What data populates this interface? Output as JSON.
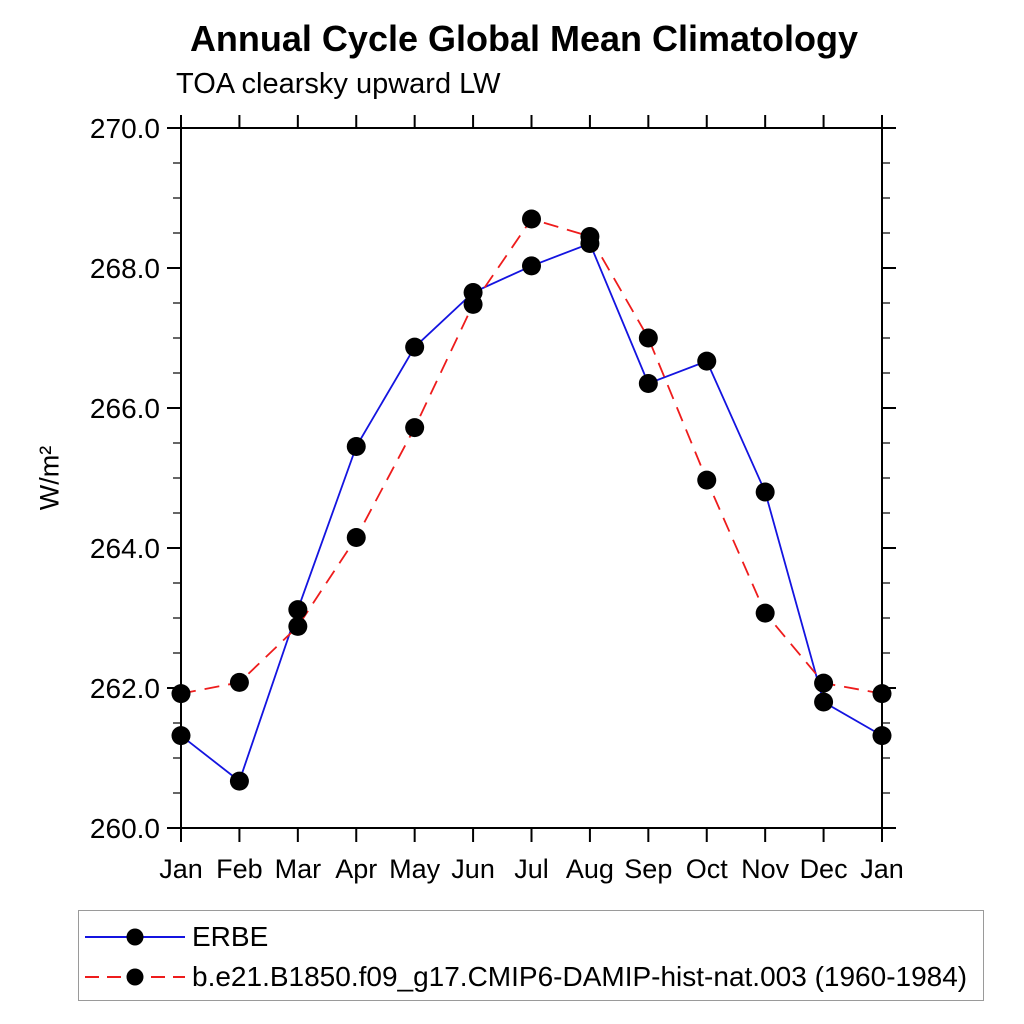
{
  "title": "Annual Cycle Global Mean Climatology",
  "subtitle": "TOA clearsky upward LW",
  "chart_data": {
    "type": "line",
    "categories": [
      "Jan",
      "Feb",
      "Mar",
      "Apr",
      "May",
      "Jun",
      "Jul",
      "Aug",
      "Sep",
      "Oct",
      "Nov",
      "Dec",
      "Jan"
    ],
    "series": [
      {
        "name": "ERBE",
        "color": "#1414e0",
        "line_style": "solid",
        "marker": "black-dot",
        "values": [
          261.32,
          260.67,
          263.12,
          265.45,
          266.87,
          267.65,
          268.03,
          268.35,
          266.35,
          266.67,
          264.8,
          261.8,
          261.32
        ]
      },
      {
        "name": "b.e21.B1850.f09_g17.CMIP6-DAMIP-hist-nat.003 (1960-1984)",
        "color": "#ee1c1c",
        "line_style": "dashed",
        "marker": "black-dot",
        "values": [
          261.92,
          262.08,
          262.88,
          264.15,
          265.72,
          267.48,
          268.7,
          268.45,
          267.0,
          264.97,
          263.07,
          262.07,
          261.92
        ]
      }
    ],
    "xlabel": "",
    "ylabel": "W/m²",
    "ylim": [
      260.0,
      270.0
    ],
    "ytick_major": 2.0,
    "ytick_minor": 0.5,
    "ytick_decimals": 1,
    "grid": false,
    "marker_color": "#000000",
    "axis_color": "#000000",
    "legend_position": "bottom-left-box"
  }
}
